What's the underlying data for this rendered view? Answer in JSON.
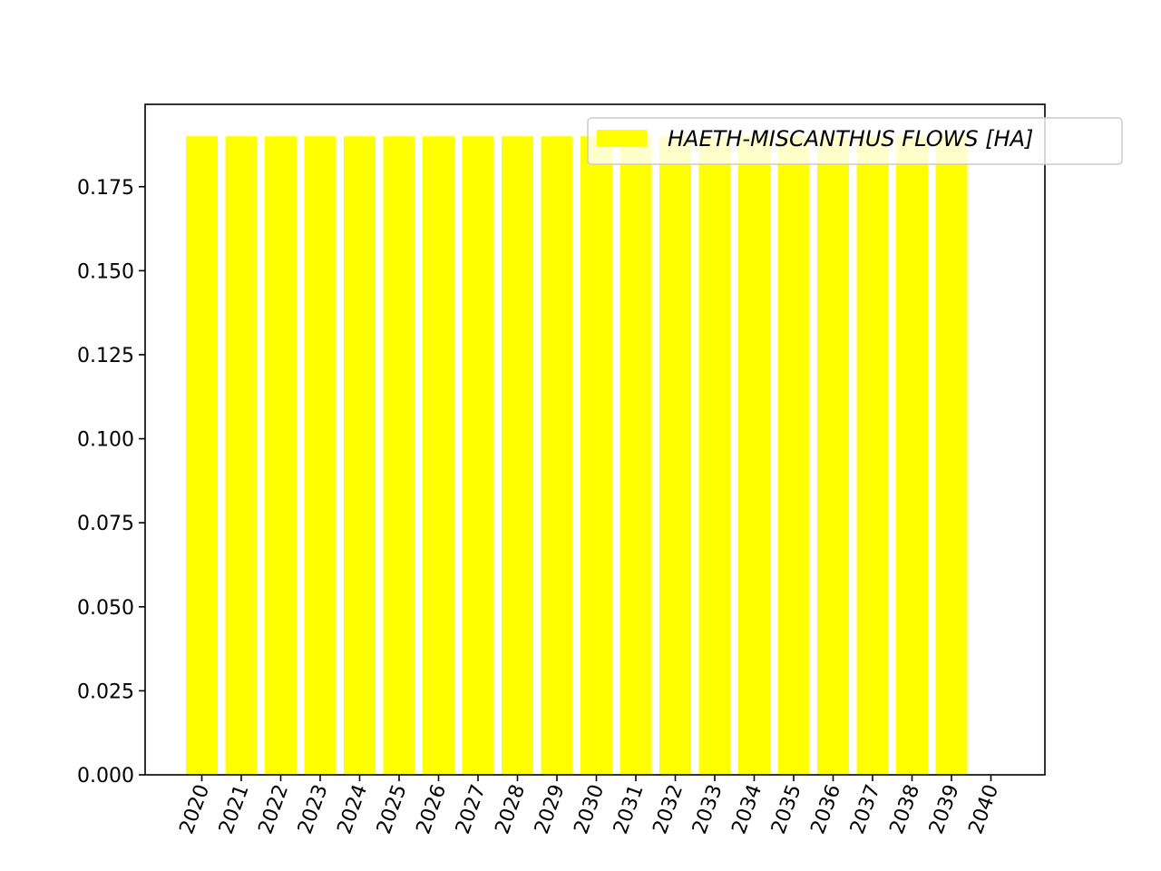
{
  "chart_data": {
    "type": "bar",
    "categories": [
      "2020",
      "2021",
      "2022",
      "2023",
      "2024",
      "2025",
      "2026",
      "2027",
      "2028",
      "2029",
      "2030",
      "2031",
      "2032",
      "2033",
      "2034",
      "2035",
      "2036",
      "2037",
      "2038",
      "2039",
      "2040"
    ],
    "series": [
      {
        "name": "HAETH-MISCANTHUS FLOWS [HA]",
        "color": "#ffff00",
        "values": [
          0.19,
          0.19,
          0.19,
          0.19,
          0.19,
          0.19,
          0.19,
          0.19,
          0.19,
          0.19,
          0.19,
          0.19,
          0.19,
          0.19,
          0.19,
          0.19,
          0.19,
          0.19,
          0.19,
          0.19,
          0
        ]
      }
    ],
    "yticks": [
      "0.000",
      "0.025",
      "0.050",
      "0.075",
      "0.100",
      "0.125",
      "0.150",
      "0.175"
    ],
    "ylim": [
      0,
      0.1995
    ],
    "title": "",
    "xlabel": "",
    "ylabel": "",
    "legend_position": "top-right",
    "grid": false
  }
}
